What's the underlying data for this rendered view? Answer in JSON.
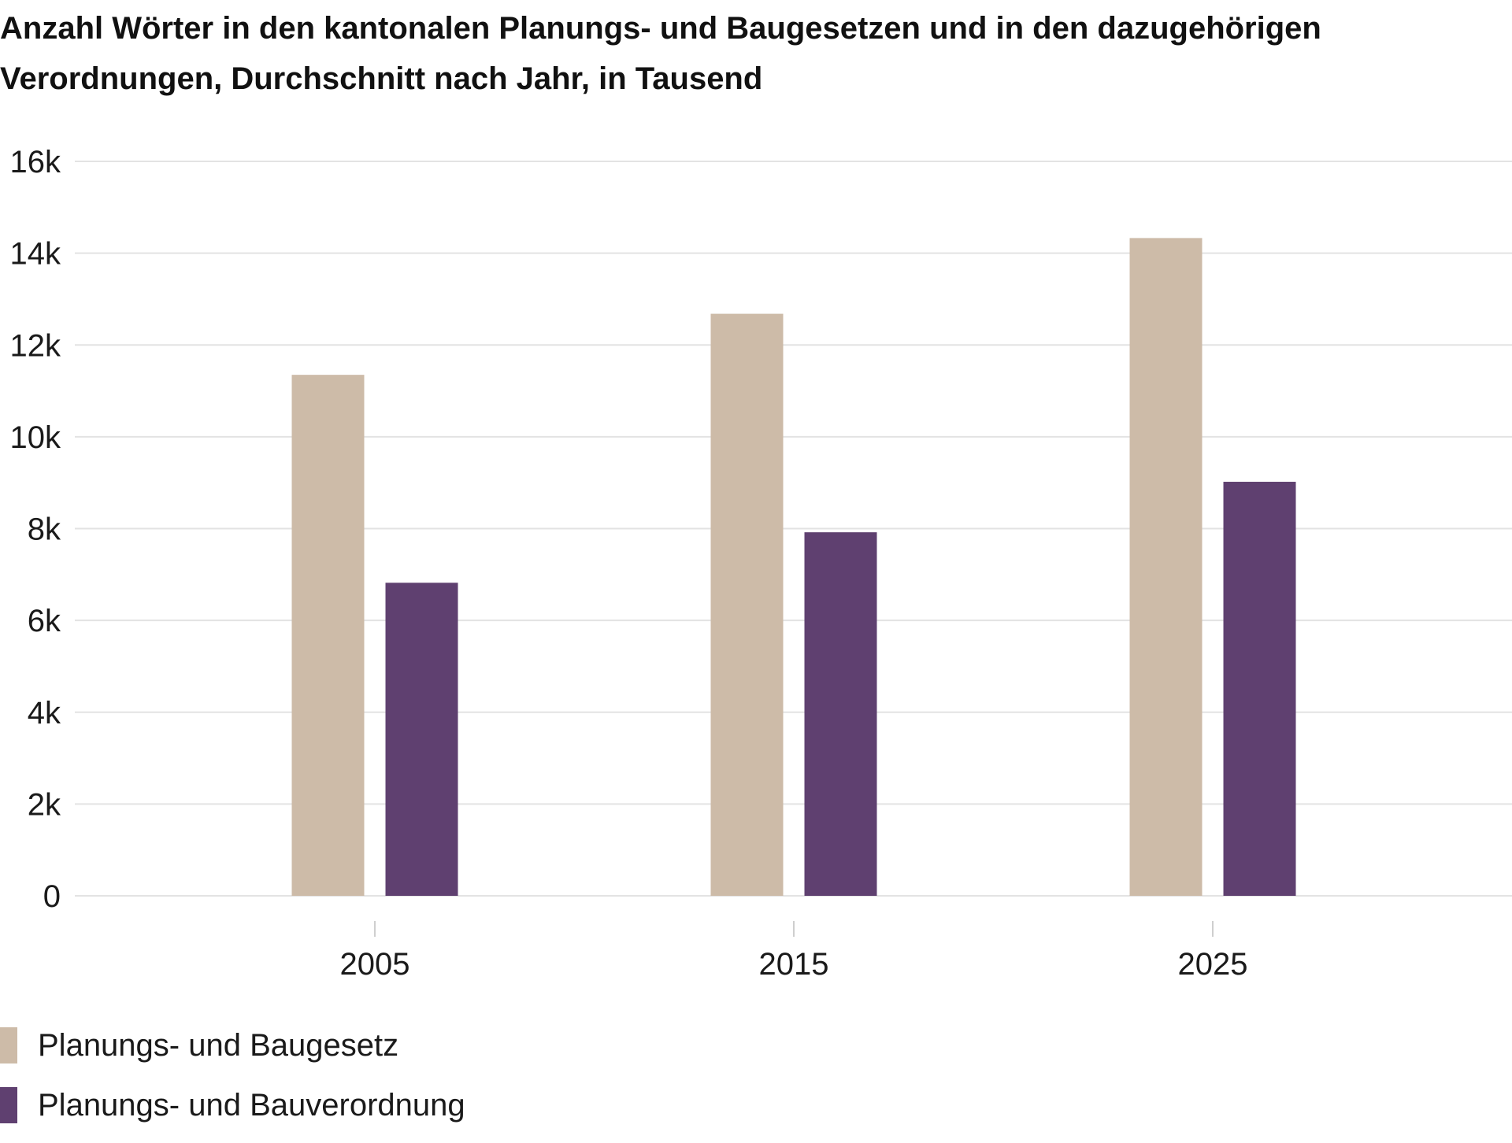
{
  "chart_data": {
    "type": "bar",
    "title": "Anzahl Wörter in den kantonalen Planungs- und Baugesetzen und in den dazugehörigen Verordnungen, Durchschnitt nach Jahr, in Tausend",
    "xlabel": "",
    "ylabel": "",
    "categories": [
      "2005",
      "2015",
      "2025"
    ],
    "series": [
      {
        "name": "Planungs- und Baugesetz",
        "color": "#cdbba8",
        "values": [
          11350,
          12680,
          14330
        ]
      },
      {
        "name": "Planungs- und Bauverordnung",
        "color": "#5f4070",
        "values": [
          6820,
          7920,
          9020
        ]
      }
    ],
    "ylim": [
      0,
      16000
    ],
    "yticks": [
      0,
      2000,
      4000,
      6000,
      8000,
      10000,
      12000,
      14000,
      16000
    ],
    "ytick_labels": [
      "0",
      "2k",
      "4k",
      "6k",
      "8k",
      "10k",
      "12k",
      "14k",
      "16k"
    ],
    "grid": true,
    "legend_position": "bottom-left"
  }
}
